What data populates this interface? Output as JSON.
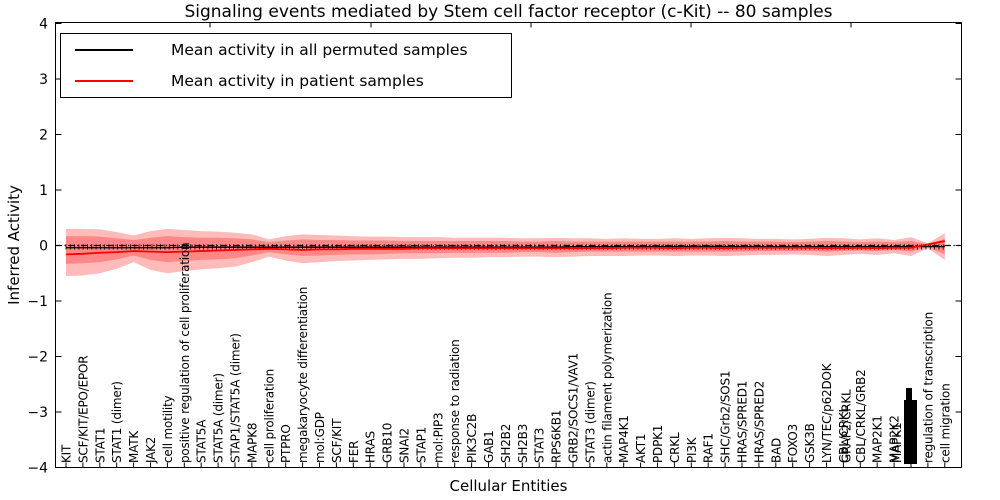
{
  "chart_data": {
    "type": "line",
    "title": "Signaling events mediated by Stem cell factor receptor (c-Kit) -- 80 samples",
    "xlabel": "Cellular Entities",
    "ylabel": "Inferred Activity",
    "ylim": [
      -4,
      4
    ],
    "ytick_labels": [
      "4",
      "3",
      "2",
      "1",
      "0",
      "−1",
      "−2",
      "−3",
      "−4"
    ],
    "grid": false,
    "zero_line_style": "dash-dot",
    "legend_position": "upper left",
    "legend": [
      {
        "name": "Mean activity in all permuted samples",
        "color": "#000000"
      },
      {
        "name": "Mean activity in patient samples",
        "color": "#ff0000"
      }
    ],
    "x_categories": [
      "KIT",
      "SCF/KIT/EPO/EPOR",
      "STAT1",
      "STAT1 (dimer)",
      "MATK",
      "JAK2",
      "cell motility",
      "positive regulation of cell proliferation",
      "STAT5A",
      "STAT5A (dimer)",
      "STAP1/STAT5A (dimer)",
      "MAPK8",
      "cell proliferation",
      "PTPRO",
      "megakaryocyte differentiation",
      "mol:GDP",
      "SCF/KIT",
      "FER",
      "HRAS",
      "GRB10",
      "SNAI2",
      "STAP1",
      "mol:PIP3",
      "response to radiation",
      "PIK3C2B",
      "GAB1",
      "SH2B2",
      "SH2B3",
      "STAT3",
      "RPS6KB1",
      "GRB2/SOCS1/VAV1",
      "STAT3 (dimer)",
      "actin filament polymerization",
      "MAP4K1",
      "AKT1",
      "PDPK1",
      "CRKL",
      "PI3K",
      "RAF1",
      "SHC/Grb2/SOS1",
      "HRAS/SPRED1",
      "HRAS/SPRED2",
      "BAD",
      "FOXO3",
      "GSK3B",
      "LYN/TEC/p62DOK",
      "CBL/CRKL",
      "CBL/CRKL/GRB2",
      "MAP2K1",
      "MAP2K2",
      "",
      "regulation of transcription",
      "cell migration"
    ],
    "x_overlapping_extra_labels": {
      "46": [
        "GRAP2/CRKL"
      ],
      "49": [
        "MAPK1"
      ],
      "50": "dense overlap of multiple labels (illegible)"
    },
    "series": [
      {
        "name": "Mean activity in all permuted samples",
        "color": "#000000",
        "values": [
          -0.04,
          -0.04,
          -0.04,
          -0.04,
          -0.04,
          -0.04,
          -0.04,
          -0.03,
          -0.03,
          -0.03,
          -0.03,
          -0.03,
          -0.03,
          -0.03,
          -0.03,
          -0.03,
          -0.03,
          -0.03,
          -0.03,
          -0.03,
          -0.03,
          -0.03,
          -0.03,
          -0.03,
          -0.03,
          -0.03,
          -0.03,
          -0.03,
          -0.03,
          -0.03,
          -0.02,
          -0.02,
          -0.02,
          -0.02,
          -0.02,
          -0.02,
          -0.02,
          -0.02,
          -0.02,
          -0.02,
          -0.02,
          -0.02,
          -0.02,
          -0.02,
          -0.02,
          -0.02,
          -0.02,
          -0.02,
          -0.02,
          -0.02,
          -0.02,
          -0.02,
          -0.02
        ]
      },
      {
        "name": "Mean activity in patient samples",
        "color": "#ff0000",
        "values": [
          -0.16,
          -0.15,
          -0.13,
          -0.12,
          -0.1,
          -0.11,
          -0.12,
          -0.11,
          -0.1,
          -0.09,
          -0.08,
          -0.07,
          -0.06,
          -0.07,
          -0.08,
          -0.07,
          -0.07,
          -0.06,
          -0.06,
          -0.06,
          -0.06,
          -0.05,
          -0.05,
          -0.05,
          -0.05,
          -0.05,
          -0.05,
          -0.05,
          -0.05,
          -0.05,
          -0.05,
          -0.05,
          -0.05,
          -0.04,
          -0.04,
          -0.04,
          -0.05,
          -0.04,
          -0.04,
          -0.05,
          -0.04,
          -0.04,
          -0.04,
          -0.04,
          -0.04,
          -0.05,
          -0.05,
          -0.04,
          -0.05,
          -0.04,
          -0.04,
          0.02,
          0.08
        ]
      }
    ],
    "bands": [
      {
        "name": "patient activity outer band",
        "color": "rgba(255,0,0,0.27)",
        "upper": [
          0.3,
          0.3,
          0.29,
          0.24,
          0.18,
          0.26,
          0.3,
          0.28,
          0.26,
          0.25,
          0.23,
          0.2,
          0.11,
          0.17,
          0.2,
          0.19,
          0.18,
          0.17,
          0.16,
          0.16,
          0.15,
          0.15,
          0.15,
          0.14,
          0.14,
          0.14,
          0.14,
          0.13,
          0.13,
          0.14,
          0.13,
          0.13,
          0.12,
          0.13,
          0.12,
          0.12,
          0.13,
          0.12,
          0.13,
          0.14,
          0.13,
          0.12,
          0.12,
          0.11,
          0.12,
          0.14,
          0.13,
          0.11,
          0.13,
          0.1,
          0.15,
          0.04,
          0.22
        ],
        "lower": [
          -0.55,
          -0.54,
          -0.5,
          -0.42,
          -0.3,
          -0.44,
          -0.5,
          -0.46,
          -0.43,
          -0.41,
          -0.38,
          -0.3,
          -0.2,
          -0.27,
          -0.32,
          -0.3,
          -0.28,
          -0.27,
          -0.26,
          -0.25,
          -0.24,
          -0.24,
          -0.23,
          -0.22,
          -0.22,
          -0.21,
          -0.21,
          -0.2,
          -0.2,
          -0.21,
          -0.2,
          -0.19,
          -0.19,
          -0.19,
          -0.18,
          -0.18,
          -0.19,
          -0.18,
          -0.18,
          -0.19,
          -0.18,
          -0.17,
          -0.17,
          -0.16,
          -0.17,
          -0.19,
          -0.17,
          -0.15,
          -0.17,
          -0.14,
          -0.19,
          -0.05,
          -0.26
        ]
      },
      {
        "name": "patient activity inner band",
        "color": "rgba(255,0,0,0.27)",
        "upper": [
          0.17,
          0.17,
          0.16,
          0.13,
          0.1,
          0.14,
          0.17,
          0.15,
          0.14,
          0.14,
          0.13,
          0.11,
          0.06,
          0.09,
          0.11,
          0.1,
          0.1,
          0.09,
          0.09,
          0.09,
          0.08,
          0.08,
          0.08,
          0.08,
          0.08,
          0.08,
          0.08,
          0.07,
          0.07,
          0.08,
          0.07,
          0.07,
          0.07,
          0.07,
          0.07,
          0.07,
          0.07,
          0.07,
          0.07,
          0.08,
          0.07,
          0.07,
          0.07,
          0.06,
          0.07,
          0.08,
          0.07,
          0.06,
          0.07,
          0.06,
          0.08,
          0.02,
          0.12
        ],
        "lower": [
          -0.33,
          -0.32,
          -0.3,
          -0.25,
          -0.18,
          -0.26,
          -0.3,
          -0.28,
          -0.26,
          -0.25,
          -0.23,
          -0.18,
          -0.12,
          -0.16,
          -0.19,
          -0.18,
          -0.17,
          -0.16,
          -0.16,
          -0.15,
          -0.14,
          -0.14,
          -0.14,
          -0.13,
          -0.13,
          -0.13,
          -0.13,
          -0.12,
          -0.12,
          -0.13,
          -0.12,
          -0.11,
          -0.11,
          -0.11,
          -0.11,
          -0.11,
          -0.11,
          -0.11,
          -0.11,
          -0.11,
          -0.11,
          -0.1,
          -0.1,
          -0.1,
          -0.1,
          -0.11,
          -0.1,
          -0.09,
          -0.1,
          -0.08,
          -0.11,
          -0.03,
          -0.16
        ]
      }
    ]
  }
}
